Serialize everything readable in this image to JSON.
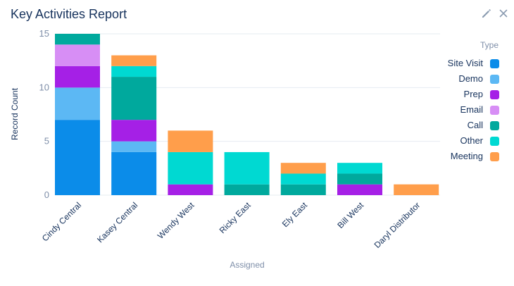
{
  "header": {
    "title": "Key Activities Report",
    "edit_icon": "pencil-icon",
    "close_icon": "close-icon"
  },
  "chart_data": {
    "type": "bar",
    "stacked": true,
    "xlabel": "Assigned",
    "ylabel": "Record Count",
    "ylim": [
      0,
      15
    ],
    "yticks": [
      0,
      5,
      10,
      15
    ],
    "grid": true,
    "legend": {
      "title": "Type",
      "position": "right"
    },
    "categories": [
      "Cindy Central",
      "Kasey Central",
      "Wendy West",
      "Ricky East",
      "Ely East",
      "Bill West",
      "Daryl Distributor"
    ],
    "series": [
      {
        "name": "Site Visit",
        "color": "#0b8ce9",
        "values": [
          7,
          4,
          0,
          0,
          0,
          0,
          0
        ]
      },
      {
        "name": "Demo",
        "color": "#5cb8f4",
        "values": [
          3,
          1,
          0,
          0,
          0,
          0,
          0
        ]
      },
      {
        "name": "Prep",
        "color": "#a520e6",
        "values": [
          2,
          2,
          1,
          0,
          0,
          1,
          0
        ]
      },
      {
        "name": "Email",
        "color": "#d78ef5",
        "values": [
          2,
          0,
          0,
          0,
          0,
          0,
          0
        ]
      },
      {
        "name": "Call",
        "color": "#00a99d",
        "values": [
          1,
          4,
          0,
          1,
          1,
          1,
          0
        ]
      },
      {
        "name": "Other",
        "color": "#00d9d2",
        "values": [
          0,
          1,
          3,
          3,
          1,
          1,
          0
        ]
      },
      {
        "name": "Meeting",
        "color": "#ff9e4b",
        "values": [
          0,
          1,
          2,
          0,
          1,
          0,
          1
        ]
      }
    ]
  }
}
